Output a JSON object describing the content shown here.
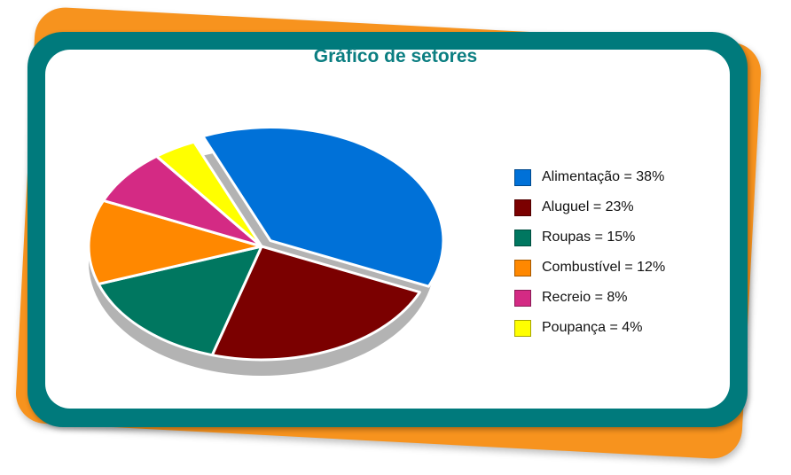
{
  "title": "Gráfico de setores",
  "chart_data": {
    "type": "pie",
    "title": "Gráfico de setores",
    "legend_position": "right",
    "slices": [
      {
        "label": "Alimentação = 38%",
        "value": 38,
        "color": "#0071d8"
      },
      {
        "label": "Aluguel = 23%",
        "value": 23,
        "color": "#7b0000"
      },
      {
        "label": "Roupas = 15%",
        "value": 15,
        "color": "#007760"
      },
      {
        "label": "Combustível = 12%",
        "value": 12,
        "color": "#ff8800"
      },
      {
        "label": "Recreio = 8%",
        "value": 8,
        "color": "#d42a84"
      },
      {
        "label": "Poupança = 4%",
        "value": 4,
        "color": "#ffff00"
      }
    ]
  }
}
